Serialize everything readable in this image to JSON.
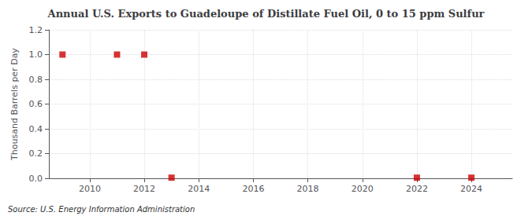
{
  "chart_data": {
    "type": "scatter",
    "title": "Annual U.S. Exports to Guadeloupe of Distillate Fuel Oil, 0 to 15 ppm Sulfur",
    "ylabel": "Thousand Barrels per Day",
    "annotations": [
      "Source: U.S. Energy Information Administration"
    ],
    "x": [
      2009,
      2011,
      2012,
      2013,
      2022,
      2024
    ],
    "values": [
      1.0,
      1.0,
      1.0,
      0.005,
      0.005,
      0.005
    ],
    "color": "#cc0000",
    "marker": "square",
    "xlim": [
      2008.5,
      2025.5
    ],
    "ylim": [
      0.0,
      1.2
    ],
    "xticks": [
      2010,
      2012,
      2014,
      2016,
      2018,
      2020,
      2022,
      2024
    ],
    "yticks": [
      {
        "value": 0.0,
        "label": "0.0"
      },
      0.2,
      0.4,
      0.6,
      0.8,
      {
        "value": 1.0,
        "label": "1.0"
      },
      1.2
    ],
    "grid": true
  }
}
